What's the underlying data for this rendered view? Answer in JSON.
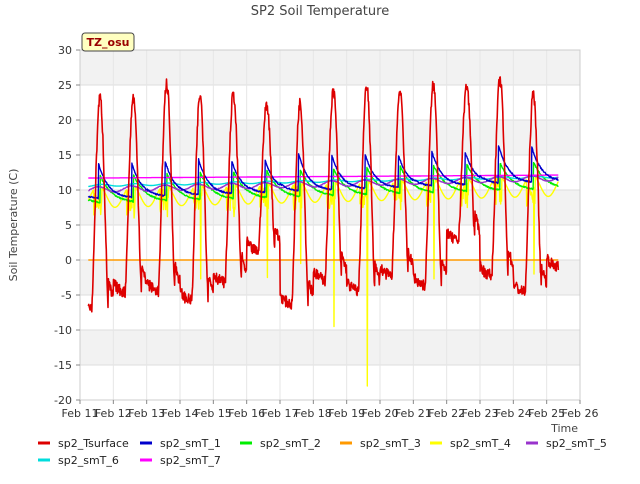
{
  "chart_data": {
    "type": "line",
    "title": "SP2 Soil Temperature",
    "ylabel": "Soil Temperature (C)",
    "xlabel": "Time",
    "station_badge": "TZ_osu",
    "xlim": [
      11,
      26
    ],
    "ylim": [
      -20,
      30
    ],
    "yticks": [
      -20,
      -15,
      -10,
      -5,
      0,
      5,
      10,
      15,
      20,
      25,
      30
    ],
    "x_ticks": [
      {
        "day": 11,
        "label": "Feb 11"
      },
      {
        "day": 12,
        "label": "Feb 12"
      },
      {
        "day": 13,
        "label": "Feb 13"
      },
      {
        "day": 14,
        "label": "Feb 14"
      },
      {
        "day": 15,
        "label": "Feb 15"
      },
      {
        "day": 16,
        "label": "Feb 16"
      },
      {
        "day": 17,
        "label": "Feb 17"
      },
      {
        "day": 18,
        "label": "Feb 18"
      },
      {
        "day": 19,
        "label": "Feb 19"
      },
      {
        "day": 20,
        "label": "Feb 20"
      },
      {
        "day": 21,
        "label": "Feb 21"
      },
      {
        "day": 22,
        "label": "Feb 22"
      },
      {
        "day": 23,
        "label": "Feb 23"
      },
      {
        "day": 24,
        "label": "Feb 24"
      },
      {
        "day": 25,
        "label": "Feb 25"
      },
      {
        "day": 26,
        "label": "Feb 26"
      }
    ],
    "daily_peaks": {
      "days": [
        11,
        12,
        13,
        14,
        15,
        16,
        17,
        18,
        19,
        20,
        21,
        22,
        23,
        24,
        25
      ],
      "sp2_Tsurface_max": [
        null,
        23.2,
        25.2,
        23.5,
        23.7,
        22.2,
        22.4,
        24.2,
        24.7,
        24.3,
        25.0,
        24.8,
        25.8,
        23.7,
        25.3
      ],
      "sp2_Tsurface_min": [
        -7.0,
        -4.8,
        -4.6,
        -6.0,
        -3.4,
        1.0,
        -6.5,
        -3.0,
        -4.6,
        -2.5,
        -3.8,
        2.5,
        -2.4,
        -4.8,
        -1.2
      ],
      "sp2_smT_1_max": [
        null,
        13.9,
        14.2,
        14.5,
        14.2,
        14.3,
        15.3,
        15.1,
        15.2,
        15.0,
        15.6,
        15.5,
        16.5,
        16.2,
        16.0
      ],
      "sp2_smT_4_min": [
        6.5,
        6.0,
        6.2,
        -2.7,
        6.2,
        -2.5,
        -0.5,
        -9.5,
        -18.0,
        7.2,
        -2.7,
        7.5,
        8.0,
        -2.0,
        7.5
      ]
    },
    "series": [
      {
        "name": "sp2_Tsurface",
        "color": "#dd0000",
        "approx_range": [
          -7.0,
          25.8
        ]
      },
      {
        "name": "sp2_smT_1",
        "color": "#0000cc",
        "approx_range": [
          8.5,
          16.5
        ]
      },
      {
        "name": "sp2_smT_2",
        "color": "#00ee00",
        "approx_range": [
          7.5,
          14.0
        ]
      },
      {
        "name": "sp2_smT_3",
        "color": "#ff9900",
        "constant": 0.0
      },
      {
        "name": "sp2_smT_4",
        "color": "#ffff00",
        "approx_range": [
          -18.0,
          14.5
        ]
      },
      {
        "name": "sp2_smT_5",
        "color": "#9933cc",
        "approx_range": [
          10.0,
          12.5
        ]
      },
      {
        "name": "sp2_smT_6",
        "color": "#00dddd",
        "approx_range": [
          10.5,
          12.0
        ]
      },
      {
        "name": "sp2_smT_7",
        "color": "#ff00ff",
        "approx_range": [
          11.7,
          12.2
        ]
      }
    ]
  }
}
